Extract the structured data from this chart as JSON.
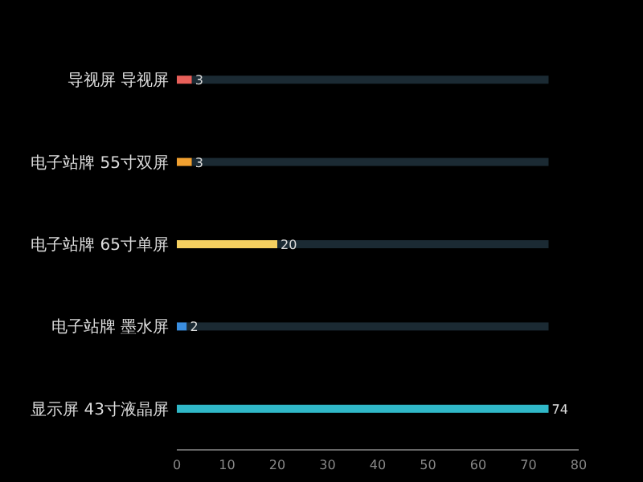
{
  "chart_data": {
    "type": "bar",
    "orientation": "horizontal",
    "stacked": true,
    "categories": [
      "导视屏 导视屏",
      "电子站牌 55寸双屏",
      "电子站牌 65寸单屏",
      "电子站牌 墨水屏",
      "显示屏 43寸液晶屏"
    ],
    "series": [
      {
        "values": [
          3,
          3,
          20,
          2,
          74
        ],
        "colors": [
          "#e8605a",
          "#f0a030",
          "#f5d060",
          "#3a8ee0",
          "#30b8c8"
        ],
        "data_labels": true
      },
      {
        "values": [
          71,
          71,
          54,
          72,
          null
        ],
        "color": "#1b2a33"
      }
    ],
    "xlim": [
      0,
      80
    ],
    "xticks": [
      0,
      10,
      20,
      30,
      40,
      50,
      60,
      70,
      80
    ],
    "grid": false
  }
}
